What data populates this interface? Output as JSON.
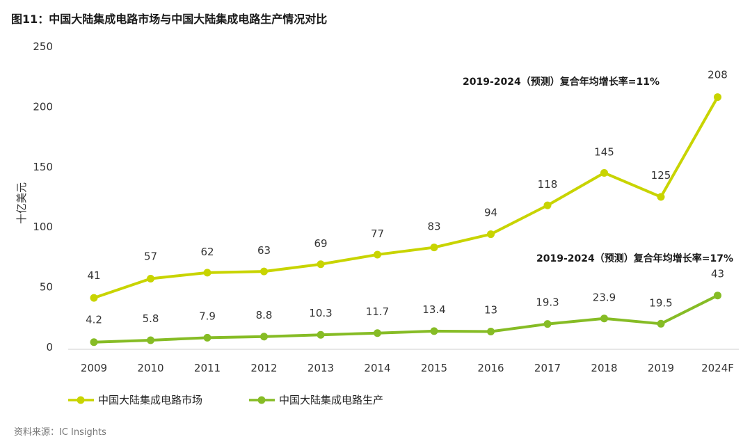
{
  "title": "图11：中国大陆集成电路市场与中国大陆集成电路生产情况对比",
  "source": "资料来源：IC Insights",
  "chart_data": {
    "type": "line",
    "ylabel": "十亿美元",
    "xlabel": "",
    "ylim": [
      0,
      250
    ],
    "yticks": [
      0,
      50,
      100,
      150,
      200,
      250
    ],
    "categories": [
      "2009",
      "2010",
      "2011",
      "2012",
      "2013",
      "2014",
      "2015",
      "2016",
      "2017",
      "2018",
      "2019",
      "2024F"
    ],
    "series": [
      {
        "name": "中国大陆集成电路市场",
        "color": "#c8d400",
        "values": [
          41,
          57,
          62,
          63,
          69,
          77,
          83,
          94,
          118,
          145,
          125,
          208
        ],
        "labels": [
          "41",
          "57",
          "62",
          "63",
          "69",
          "77",
          "83",
          "94",
          "118",
          "145",
          "125",
          "208"
        ]
      },
      {
        "name": "中国大陆集成电路生产",
        "color": "#86bc25",
        "values": [
          4.2,
          5.8,
          7.9,
          8.8,
          10.3,
          11.7,
          13.4,
          13,
          19.3,
          23.9,
          19.5,
          43
        ],
        "labels": [
          "4.2",
          "5.8",
          "7.9",
          "8.8",
          "10.3",
          "11.7",
          "13.4",
          "13",
          "19.3",
          "23.9",
          "19.5",
          "43"
        ]
      }
    ],
    "annotations": [
      "2019-2024（预测）复合年均增长率=11%",
      "2019-2024（预测）复合年均增长率=17%"
    ],
    "grid": false,
    "legend_position": "bottom-left"
  }
}
